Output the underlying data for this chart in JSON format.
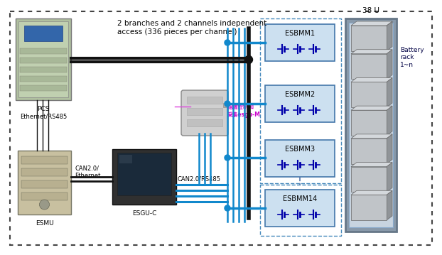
{
  "bg_color": "#ffffff",
  "border_dot_color": "#444444",
  "title_annotation": "2 branches and 2 channels independent\naccess (336 pieces per channel)",
  "pcs_label": "PCS",
  "esmu_label": "ESMU",
  "esguc_label": "ESGU-C",
  "eth_label": "Ethernet/RS485",
  "can_label": "CAN2.0/\nEthernet",
  "can2_label": "CAN2.0/RS485",
  "esgu_m_label": "组端控制和\n采集esgu-M",
  "esbmm_labels": [
    "ESBMM1",
    "ESBMM2",
    "ESBMM3",
    "ESBMM14"
  ],
  "rack_label": "38 U",
  "battery_label": "Battery\nrack\n1~n",
  "line_black": "#111111",
  "line_blue": "#1188cc",
  "line_cyan": "#00aadd",
  "box_fill": "#cce0f0",
  "box_edge": "#4477aa",
  "dashed_box_color": "#4488bb",
  "pcs_fill": "#b0c0a0",
  "pcs_dark": "#6a8060",
  "esmu_fill": "#c8c0a0",
  "esguc_fill": "#303030",
  "rack_fill": "#b0bcc8",
  "rack_inner": "#c8d4e0",
  "batt_face": "#c0c4c8",
  "batt_top": "#d4d8dc",
  "batt_side": "#909498"
}
